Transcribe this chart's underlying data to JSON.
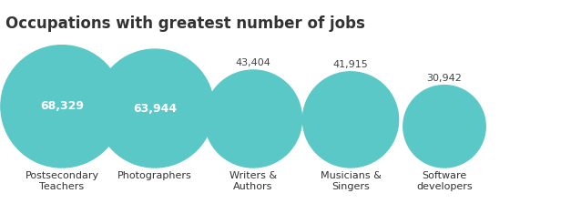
{
  "title": "Occupations with greatest number of jobs",
  "title_fontsize": 12,
  "title_fontweight": "bold",
  "circle_color": "#5bc8c8",
  "label_color": "#333333",
  "value_color_inside": "#ffffff",
  "value_color_outside": "#444444",
  "background_color": "#ffffff",
  "occupations": [
    {
      "label": "Postsecondary\nTeachers",
      "value": 68329,
      "value_str": "68,329",
      "label_inside": true
    },
    {
      "label": "Photographers",
      "value": 63944,
      "value_str": "63,944",
      "label_inside": true
    },
    {
      "label": "Writers &\nAuthors",
      "value": 43404,
      "value_str": "43,404",
      "label_inside": false
    },
    {
      "label": "Musicians &\nSingers",
      "value": 41915,
      "value_str": "41,915",
      "label_inside": false
    },
    {
      "label": "Software\ndevelopers",
      "value": 30942,
      "value_str": "30,942",
      "label_inside": false
    }
  ],
  "figsize": [
    6.27,
    2.46
  ],
  "dpi": 100
}
